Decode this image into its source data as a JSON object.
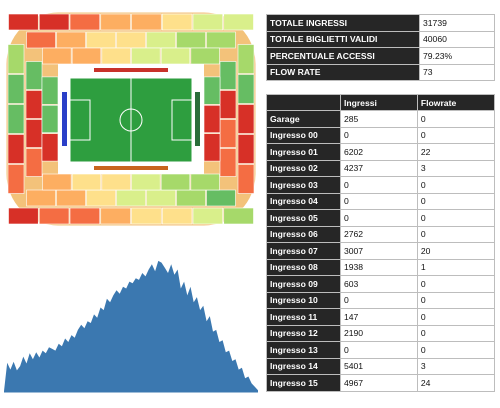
{
  "summary": [
    {
      "label": "TOTALE INGRESSI",
      "value": "31739"
    },
    {
      "label": "TOTALE BIGLIETTI VALIDI",
      "value": "40060"
    },
    {
      "label": "PERCENTUALE ACCESSI",
      "value": "79.23%"
    },
    {
      "label": "FLOW RATE",
      "value": "73"
    }
  ],
  "gates_table": {
    "headers": [
      "",
      "Ingressi",
      "Flowrate"
    ],
    "rows": [
      {
        "name": "Garage",
        "ingressi": "285",
        "flowrate": "0"
      },
      {
        "name": "Ingresso 00",
        "ingressi": "0",
        "flowrate": "0"
      },
      {
        "name": "Ingresso 01",
        "ingressi": "6202",
        "flowrate": "22"
      },
      {
        "name": "Ingresso 02",
        "ingressi": "4237",
        "flowrate": "3"
      },
      {
        "name": "Ingresso 03",
        "ingressi": "0",
        "flowrate": "0"
      },
      {
        "name": "Ingresso 04",
        "ingressi": "0",
        "flowrate": "0"
      },
      {
        "name": "Ingresso 05",
        "ingressi": "0",
        "flowrate": "0"
      },
      {
        "name": "Ingresso 06",
        "ingressi": "2762",
        "flowrate": "0"
      },
      {
        "name": "Ingresso 07",
        "ingressi": "3007",
        "flowrate": "20"
      },
      {
        "name": "Ingresso 08",
        "ingressi": "1938",
        "flowrate": "1"
      },
      {
        "name": "Ingresso 09",
        "ingressi": "603",
        "flowrate": "0"
      },
      {
        "name": "Ingresso 10",
        "ingressi": "0",
        "flowrate": "0"
      },
      {
        "name": "Ingresso 11",
        "ingressi": "147",
        "flowrate": "0"
      },
      {
        "name": "Ingresso 12",
        "ingressi": "2190",
        "flowrate": "0"
      },
      {
        "name": "Ingresso 13",
        "ingressi": "0",
        "flowrate": "0"
      },
      {
        "name": "Ingresso 14",
        "ingressi": "5401",
        "flowrate": "3"
      },
      {
        "name": "Ingresso 15",
        "ingressi": "4967",
        "flowrate": "24"
      }
    ]
  },
  "stadium_map": {
    "heat_colors": [
      "#d73027",
      "#f46d43",
      "#fdae61",
      "#fee08b",
      "#d9ef8b",
      "#a6d96a",
      "#66bd63"
    ],
    "pitch_color": "#2e9e3f",
    "north_marker_color": "#c8322a",
    "south_marker_color": "#c8641e",
    "west_marker_color": "#2a3fc8",
    "east_marker_color": "#2a6e3a"
  },
  "chart_data": {
    "type": "area",
    "color": "#3b78b0",
    "x": [
      0,
      1,
      2,
      3,
      4,
      5,
      6,
      7,
      8,
      9,
      10,
      11,
      12,
      13,
      14,
      15,
      16,
      17,
      18,
      19,
      20,
      21,
      22,
      23,
      24,
      25,
      26,
      27,
      28,
      29,
      30,
      31,
      32,
      33,
      34,
      35,
      36,
      37,
      38,
      39,
      40,
      41,
      42,
      43,
      44,
      45,
      46,
      47,
      48,
      49,
      50,
      51,
      52,
      53,
      54,
      55,
      56,
      57,
      58,
      59,
      60,
      61,
      62,
      63,
      64,
      65,
      66,
      67,
      68,
      69,
      70,
      71,
      72,
      73,
      74,
      75,
      76,
      77,
      78,
      79
    ],
    "values": [
      1,
      34,
      26,
      35,
      25,
      30,
      41,
      33,
      45,
      38,
      46,
      40,
      48,
      45,
      52,
      50,
      48,
      56,
      53,
      62,
      58,
      66,
      63,
      72,
      78,
      74,
      82,
      80,
      90,
      86,
      98,
      95,
      108,
      104,
      112,
      118,
      114,
      122,
      120,
      128,
      126,
      132,
      130,
      138,
      134,
      142,
      148,
      140,
      152,
      150,
      144,
      138,
      148,
      136,
      142,
      120,
      128,
      112,
      122,
      104,
      110,
      95,
      100,
      82,
      88,
      70,
      72,
      58,
      60,
      46,
      48,
      36,
      38,
      26,
      28,
      16,
      18,
      10,
      6,
      2
    ],
    "xlim": [
      0,
      79
    ],
    "ylim": [
      0,
      160
    ],
    "grid": false
  }
}
